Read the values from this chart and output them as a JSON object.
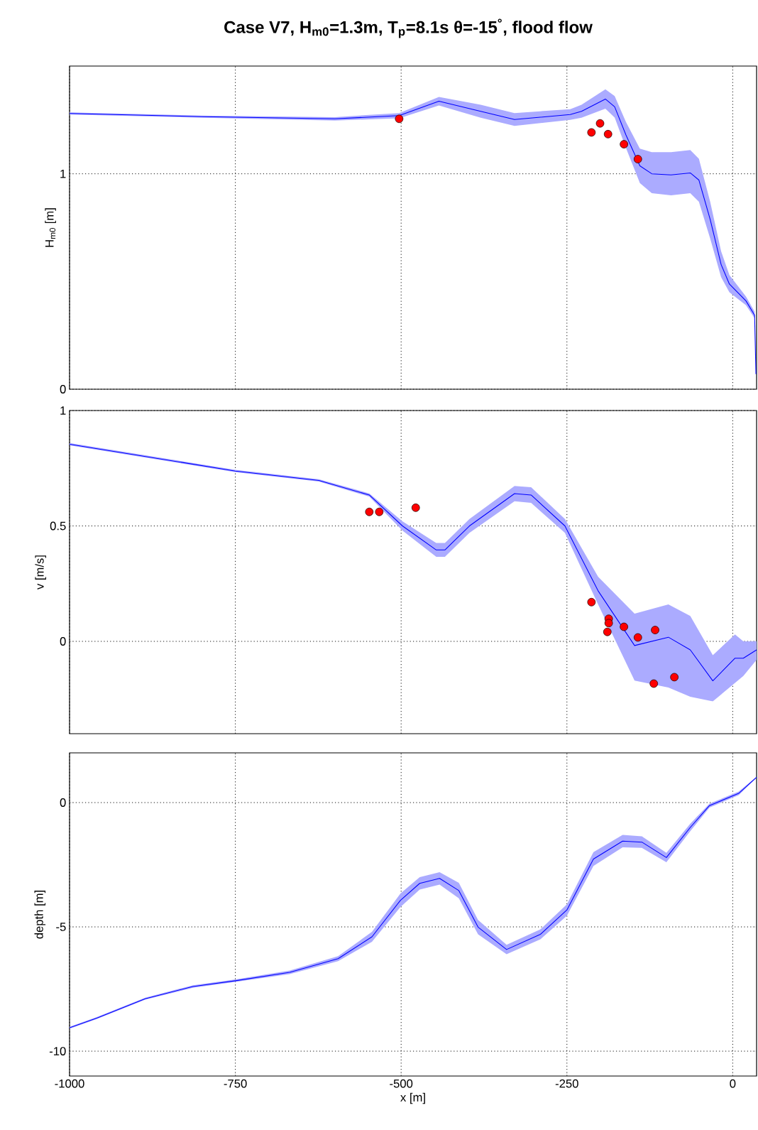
{
  "chart_data": [
    {
      "type": "line",
      "title": "Case V7, H$_{m0}$=1.3m, T$_{p}$=8.1s θ=-15$^{°}$, flood flow",
      "ylabel": "H$_{m0}$ [m]",
      "xlim": [
        -1000,
        36
      ],
      "xticks": [
        -1000,
        -750,
        -500,
        -250,
        0
      ],
      "ylim": [
        0,
        1.5
      ],
      "yticks": [
        0,
        1
      ],
      "grid": true,
      "tick_labels": "y",
      "series": [
        {
          "color": "#0000ff",
          "x": [
            -1000,
            -800,
            -600,
            -503,
            -443,
            -380,
            -329,
            -245,
            -228,
            -192,
            -178,
            -161,
            -140,
            -122,
            -93,
            -64,
            -51,
            -34,
            -17.5,
            -5,
            20,
            33,
            35
          ],
          "values": [
            1.28,
            1.265,
            1.255,
            1.27,
            1.337,
            1.29,
            1.252,
            1.275,
            1.29,
            1.347,
            1.311,
            1.18,
            1.037,
            1.0,
            0.995,
            1.004,
            0.971,
            0.788,
            0.579,
            0.488,
            0.41,
            0.344,
            0.07
          ],
          "lower": [
            1.275,
            1.26,
            1.247,
            1.258,
            1.317,
            1.26,
            1.222,
            1.25,
            1.26,
            1.302,
            1.261,
            1.12,
            0.957,
            0.91,
            0.9,
            0.91,
            0.87,
            0.7,
            0.52,
            0.45,
            0.39,
            0.33,
            0.07
          ],
          "upper": [
            1.285,
            1.27,
            1.263,
            1.282,
            1.357,
            1.32,
            1.282,
            1.3,
            1.32,
            1.392,
            1.361,
            1.24,
            1.117,
            1.1,
            1.1,
            1.11,
            1.07,
            0.87,
            0.64,
            0.53,
            0.43,
            0.36,
            0.07
          ]
        },
        {
          "type": "scatter",
          "color": "#ff0000",
          "marker": "circle",
          "x": [
            -503,
            -213,
            -200,
            -188,
            -164,
            -143
          ],
          "values": [
            1.255,
            1.192,
            1.234,
            1.184,
            1.137,
            1.068
          ]
        }
      ]
    },
    {
      "type": "line",
      "ylabel": "v [m/s]",
      "xlim": [
        -1000,
        36
      ],
      "xticks": [
        -1000,
        -750,
        -500,
        -250,
        0
      ],
      "ylim": [
        -0.4,
        1
      ],
      "yticks": [
        0,
        0.5,
        1
      ],
      "grid": true,
      "tick_labels": "y",
      "series": [
        {
          "color": "#0000ff",
          "x": [
            -1000,
            -750,
            -624,
            -548,
            -498,
            -447,
            -434,
            -397,
            -329,
            -304,
            -253,
            -203,
            -148,
            -97,
            -64,
            -30,
            3.5,
            16,
            36
          ],
          "values": [
            0.854,
            0.738,
            0.697,
            0.634,
            0.5,
            0.396,
            0.396,
            0.5,
            0.64,
            0.634,
            0.5,
            0.219,
            -0.018,
            0.018,
            -0.037,
            -0.171,
            -0.073,
            -0.073,
            -0.037
          ],
          "lower": [
            0.849,
            0.733,
            0.692,
            0.627,
            0.48,
            0.366,
            0.366,
            0.47,
            0.607,
            0.6,
            0.47,
            0.16,
            -0.17,
            -0.2,
            -0.24,
            -0.26,
            -0.18,
            -0.15,
            -0.08
          ],
          "upper": [
            0.859,
            0.743,
            0.702,
            0.641,
            0.52,
            0.426,
            0.426,
            0.53,
            0.673,
            0.668,
            0.53,
            0.28,
            0.12,
            0.16,
            0.11,
            -0.06,
            0.03,
            0.0,
            0.0
          ]
        },
        {
          "type": "scatter",
          "color": "#ff0000",
          "marker": "circle",
          "x": [
            -548,
            -533,
            -478,
            -213,
            -187,
            -187,
            -189,
            -164,
            -143,
            -117,
            -119,
            -88
          ],
          "values": [
            0.561,
            0.561,
            0.579,
            0.17,
            0.098,
            0.079,
            0.041,
            0.063,
            0.017,
            0.049,
            -0.183,
            -0.155
          ]
        }
      ]
    },
    {
      "type": "line",
      "xlabel": "x [m]",
      "ylabel": "depth [m]",
      "xlim": [
        -1000,
        36
      ],
      "xticks": [
        -1000,
        -750,
        -500,
        -250,
        0
      ],
      "ylim": [
        -11,
        2
      ],
      "yticks": [
        -10,
        -5,
        0
      ],
      "grid": true,
      "series": [
        {
          "color": "#0000ff",
          "x": [
            -1000,
            -959,
            -886,
            -814,
            -748,
            -668,
            -595,
            -544,
            -501,
            -472,
            -442,
            -413,
            -384,
            -341,
            -290,
            -250,
            -210,
            -166,
            -137,
            -100,
            -64,
            -35,
            9,
            36
          ],
          "values": [
            -9.06,
            -8.67,
            -7.89,
            -7.4,
            -7.16,
            -6.83,
            -6.28,
            -5.4,
            -3.93,
            -3.25,
            -3.05,
            -3.54,
            -5.01,
            -5.91,
            -5.3,
            -4.32,
            -2.27,
            -1.55,
            -1.59,
            -2.21,
            -1.0,
            -0.12,
            0.37,
            1.02
          ],
          "lower": [
            -9.1,
            -8.71,
            -7.93,
            -7.45,
            -7.21,
            -6.9,
            -6.38,
            -5.6,
            -4.2,
            -3.5,
            -3.3,
            -3.85,
            -5.3,
            -6.1,
            -5.5,
            -4.55,
            -2.55,
            -1.8,
            -1.82,
            -2.4,
            -1.15,
            -0.2,
            0.3,
            1.0
          ],
          "upper": [
            -9.02,
            -8.63,
            -7.85,
            -7.35,
            -7.11,
            -6.76,
            -6.18,
            -5.2,
            -3.66,
            -3.0,
            -2.8,
            -3.23,
            -4.72,
            -5.72,
            -5.1,
            -4.09,
            -1.99,
            -1.3,
            -1.36,
            -2.02,
            -0.85,
            -0.04,
            0.44,
            1.04
          ]
        }
      ]
    }
  ]
}
